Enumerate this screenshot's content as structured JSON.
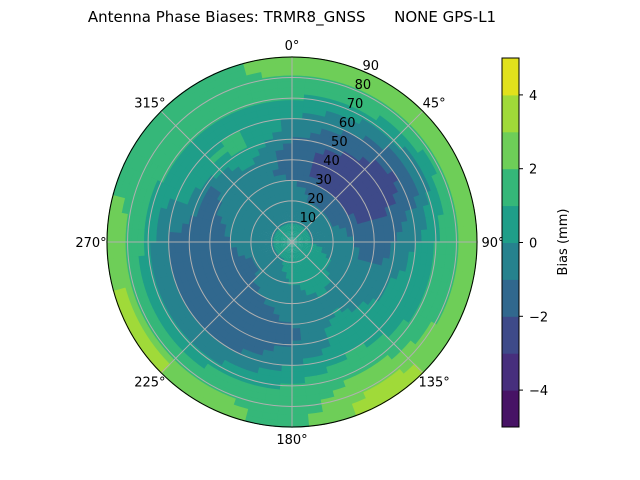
{
  "chart_data": {
    "type": "heatmap",
    "subtype": "polar-contourf",
    "title": "Antenna Phase Biases: TRMR8_GNSS      NONE GPS-L1",
    "azimuth_ticks": [
      "0°",
      "45°",
      "90°",
      "135°",
      "180°",
      "225°",
      "270°",
      "315°"
    ],
    "radial_ticks": [
      "10",
      "20",
      "30",
      "40",
      "50",
      "60",
      "70",
      "80",
      "90"
    ],
    "radial_range": [
      0,
      90
    ],
    "azimuth_deg": [
      0,
      30,
      60,
      90,
      120,
      150,
      180,
      210,
      240,
      270,
      300,
      330
    ],
    "zenith_bin_centers": [
      5,
      15,
      25,
      35,
      45,
      55,
      65,
      75,
      85
    ],
    "bias_mm": [
      [
        0.3,
        -0.5,
        -0.5,
        -1.5,
        -1.5,
        -0.5,
        0.5,
        1.5,
        2.5
      ],
      [
        0.3,
        -0.5,
        -1.5,
        -2.5,
        -2.5,
        -1.5,
        -0.5,
        1.5,
        2.5
      ],
      [
        0.3,
        -0.5,
        -1.5,
        -2.5,
        -2.5,
        -2.5,
        -1.5,
        0.5,
        2.5
      ],
      [
        0.5,
        -0.5,
        -0.5,
        -1.5,
        -1.5,
        -0.5,
        0.5,
        1.5,
        2.5
      ],
      [
        0.5,
        0.5,
        -0.5,
        -0.5,
        -0.5,
        0.5,
        0.5,
        1.5,
        2.5
      ],
      [
        0.5,
        0.5,
        0.5,
        -0.5,
        0.5,
        0.5,
        1.5,
        2.5,
        3.5
      ],
      [
        0.5,
        0.5,
        -0.5,
        -0.5,
        -1.5,
        -0.5,
        0.5,
        1.5,
        1.5
      ],
      [
        0.5,
        -0.5,
        -0.5,
        -1.5,
        -1.5,
        -1.5,
        -0.5,
        1.5,
        2.5
      ],
      [
        0.5,
        -0.5,
        -1.5,
        -1.5,
        -1.5,
        -1.5,
        -0.5,
        0.5,
        3.5
      ],
      [
        0.5,
        -0.5,
        -0.5,
        -1.5,
        -1.5,
        -1.5,
        -0.5,
        1.5,
        2.5
      ],
      [
        0.5,
        -0.5,
        -0.5,
        -0.5,
        -1.5,
        0.5,
        0.5,
        1.5,
        1.5
      ],
      [
        0.3,
        -0.5,
        -0.5,
        -0.5,
        0.5,
        1.5,
        0.5,
        1.5,
        1.5
      ]
    ],
    "levels": [
      -5,
      -4,
      -3,
      -2,
      -1,
      0,
      1,
      2,
      3,
      4,
      5
    ],
    "level_colors": [
      "#471365",
      "#472f7d",
      "#3e4a89",
      "#31688e",
      "#26828e",
      "#1f9e89",
      "#35b779",
      "#6ece58",
      "#a0da39",
      "#e1e11c"
    ],
    "colorbar": {
      "label": "Bias (mm)",
      "ticks": [
        "4",
        "2",
        "0",
        "−2",
        "−4"
      ],
      "tick_values": [
        4,
        2,
        0,
        -2,
        -4
      ],
      "range": [
        -5,
        5
      ]
    }
  }
}
